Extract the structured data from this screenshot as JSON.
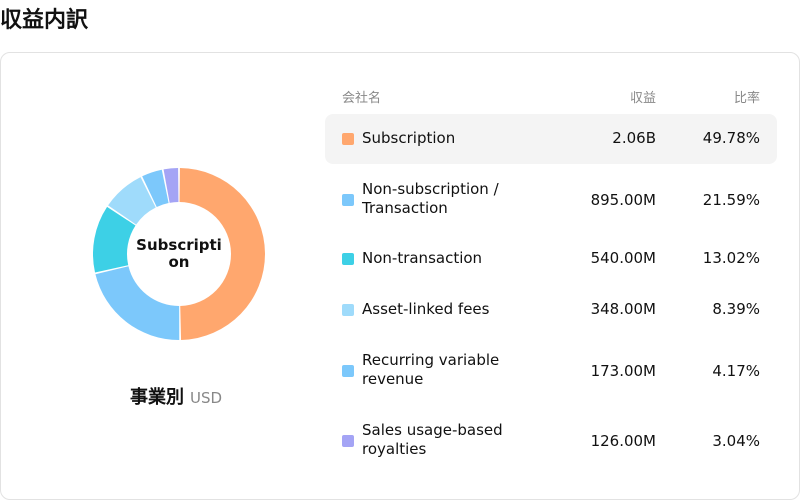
{
  "page": {
    "title": "収益内訳"
  },
  "donut": {
    "center_label": "Subscription"
  },
  "caption": {
    "label": "事業別",
    "unit": "USD"
  },
  "table": {
    "headers": {
      "company": "会社名",
      "revenue": "収益",
      "ratio": "比率"
    },
    "rows": [
      {
        "name": "Subscription",
        "value": "2.06B",
        "pct": "49.78%",
        "share": 49.78,
        "color": "#FFA76E",
        "highlighted": true
      },
      {
        "name": "Non-subscription / Transaction",
        "value": "895.00M",
        "pct": "21.59%",
        "share": 21.59,
        "color": "#7CC8FB",
        "highlighted": false
      },
      {
        "name": "Non-transaction",
        "value": "540.00M",
        "pct": "13.02%",
        "share": 13.02,
        "color": "#3DD0E6",
        "highlighted": false
      },
      {
        "name": "Asset-linked fees",
        "value": "348.00M",
        "pct": "8.39%",
        "share": 8.39,
        "color": "#9FDBFB",
        "highlighted": false
      },
      {
        "name": "Recurring variable revenue",
        "value": "173.00M",
        "pct": "4.17%",
        "share": 4.17,
        "color": "#7CC8FB",
        "highlighted": false
      },
      {
        "name": "Sales usage-based royalties",
        "value": "126.00M",
        "pct": "3.04%",
        "share": 3.04,
        "color": "#A4A4F5",
        "highlighted": false
      }
    ]
  }
}
